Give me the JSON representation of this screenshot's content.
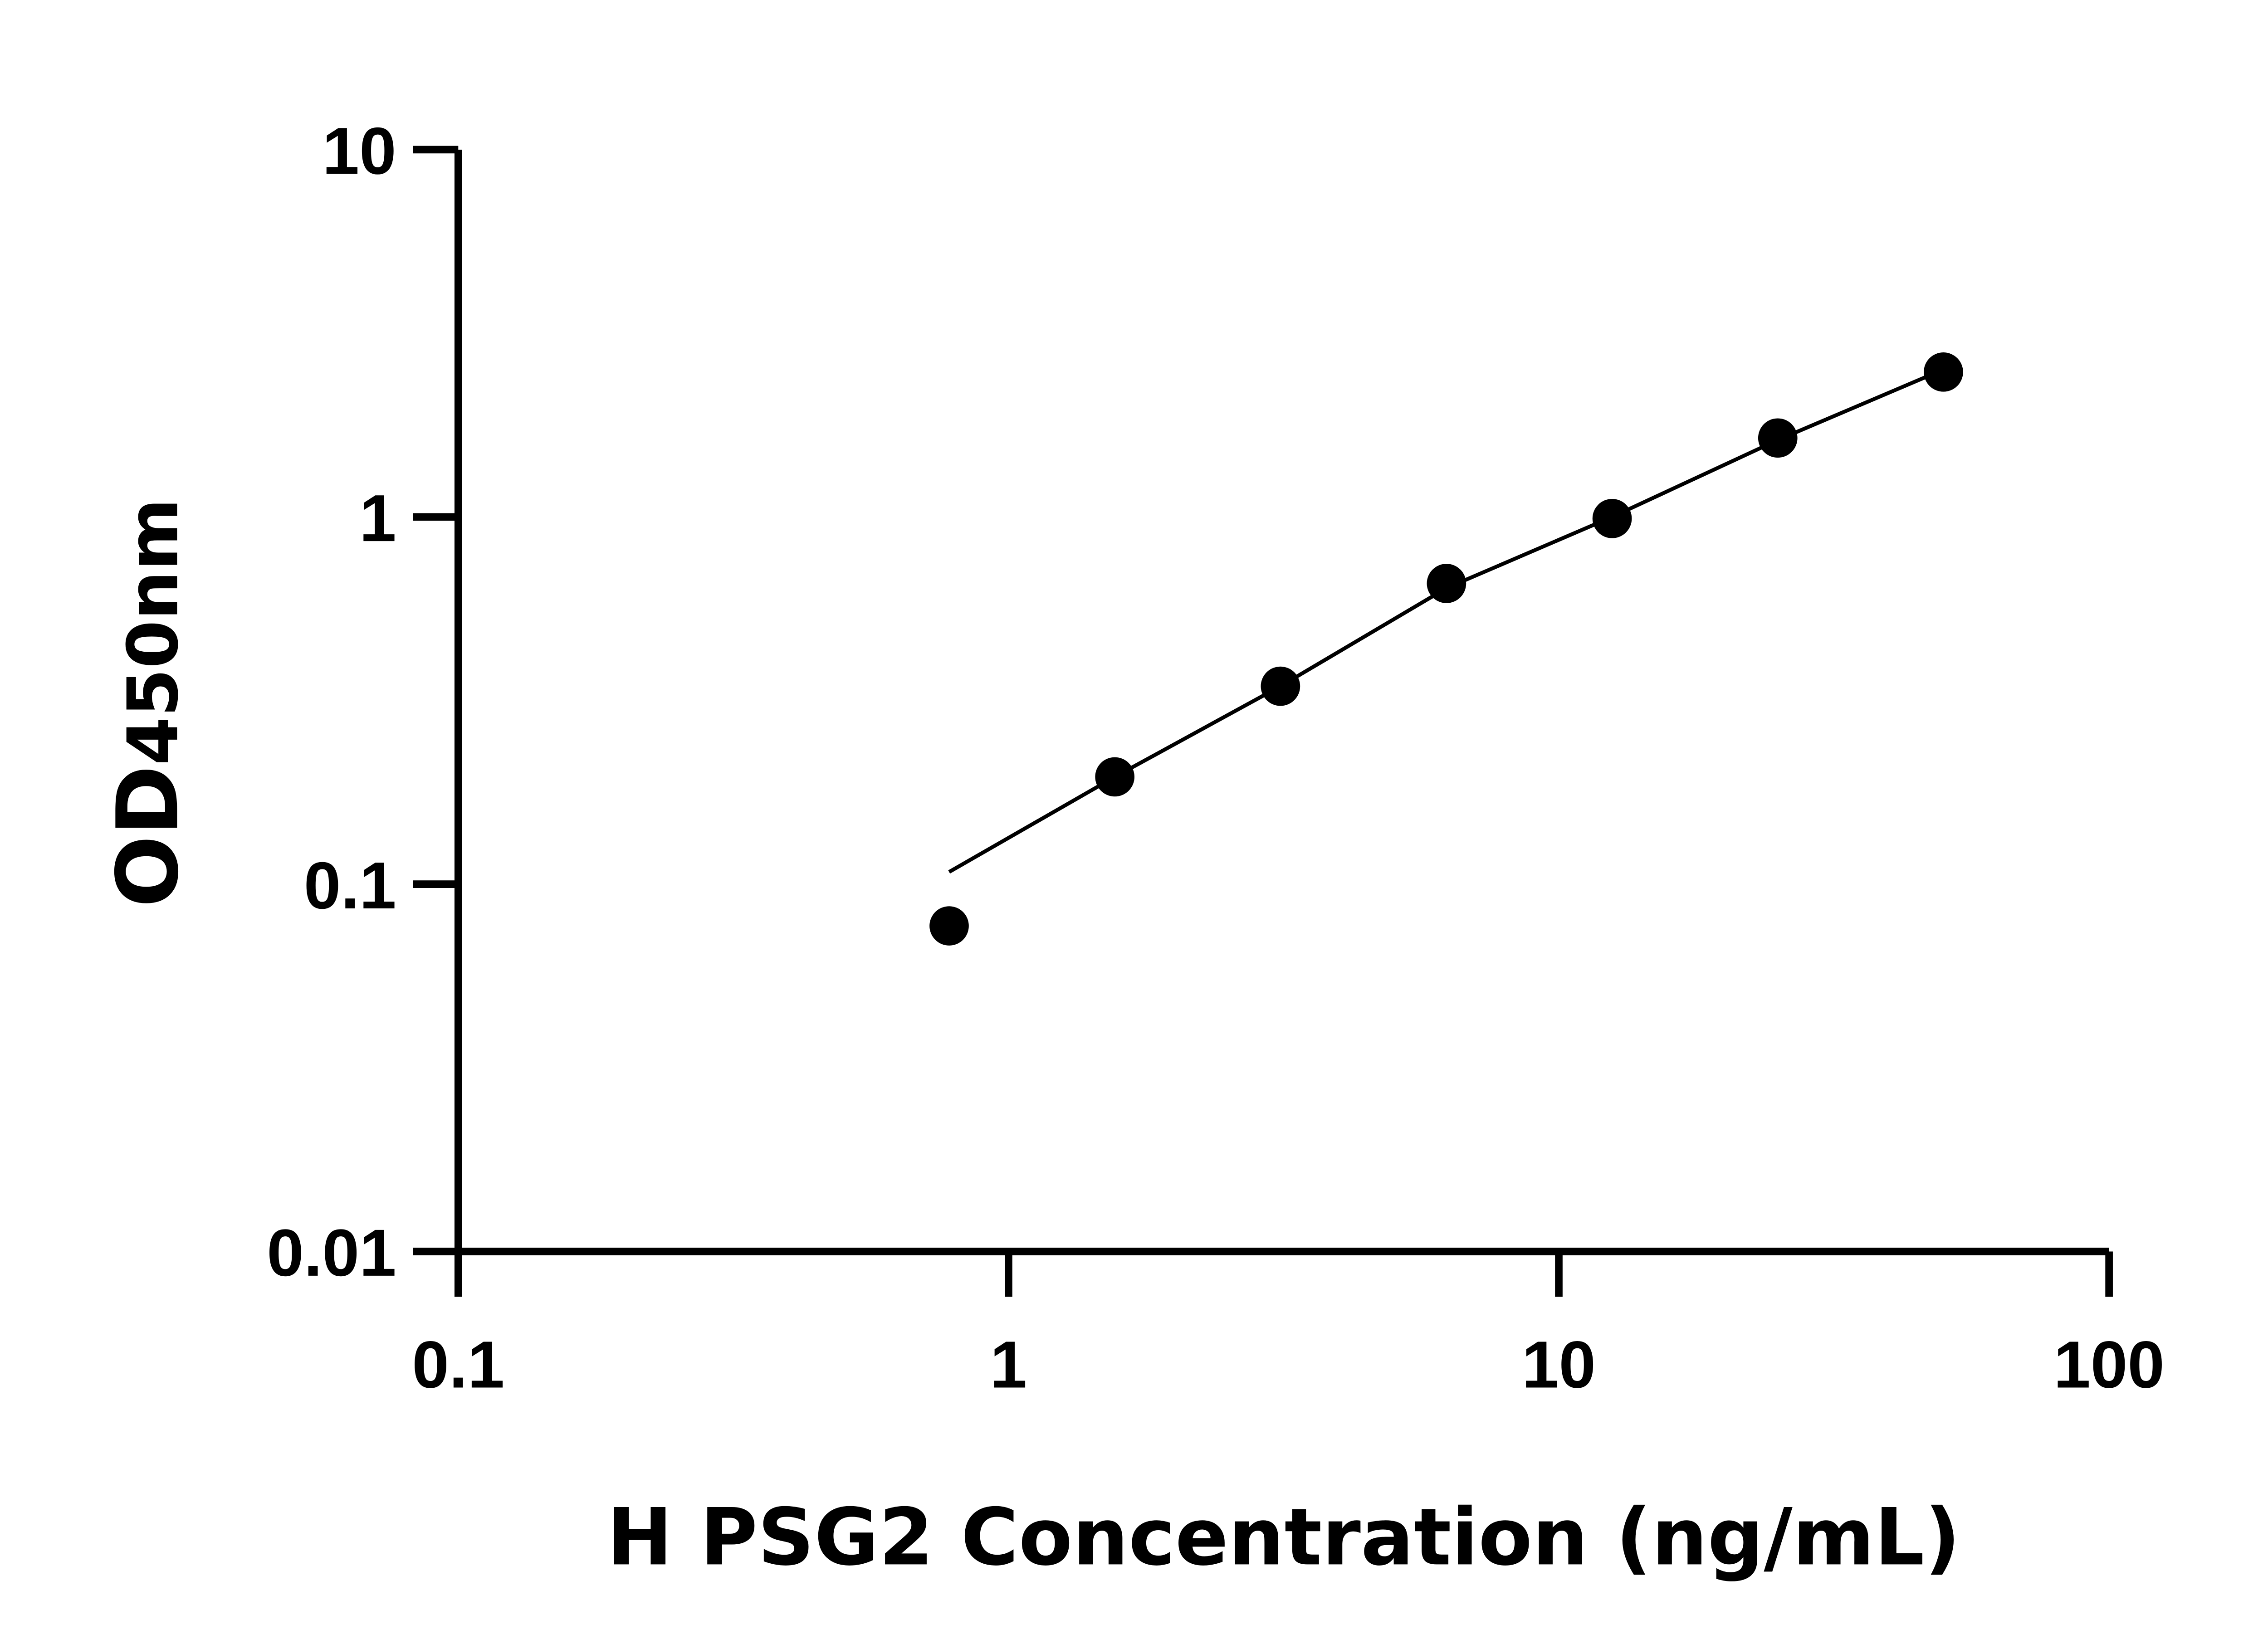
{
  "chart_data": {
    "type": "scatter",
    "xlabel": "H PSG2 Concentration (ng/mL)",
    "ylabel_main": "OD",
    "ylabel_sub": "450nm",
    "x_scale": "log",
    "y_scale": "log",
    "xlim": [
      0.1,
      100
    ],
    "ylim": [
      0.01,
      10
    ],
    "x_ticks": [
      "0.1",
      "1",
      "10",
      "100"
    ],
    "y_ticks": [
      "0.01",
      "0.1",
      "1",
      "10"
    ],
    "grid": false,
    "marker_color": "#000000",
    "points": {
      "x": [
        0.78,
        1.56,
        3.12,
        6.25,
        12.5,
        25,
        50
      ],
      "y": [
        0.077,
        0.196,
        0.346,
        0.659,
        0.99,
        1.64,
        2.48
      ]
    },
    "fit_curve": {
      "x": [
        0.78,
        1.56,
        3.12,
        6.25,
        12.5,
        25,
        50
      ],
      "y": [
        0.108,
        0.196,
        0.346,
        0.64,
        1.0,
        1.62,
        2.52
      ]
    }
  }
}
